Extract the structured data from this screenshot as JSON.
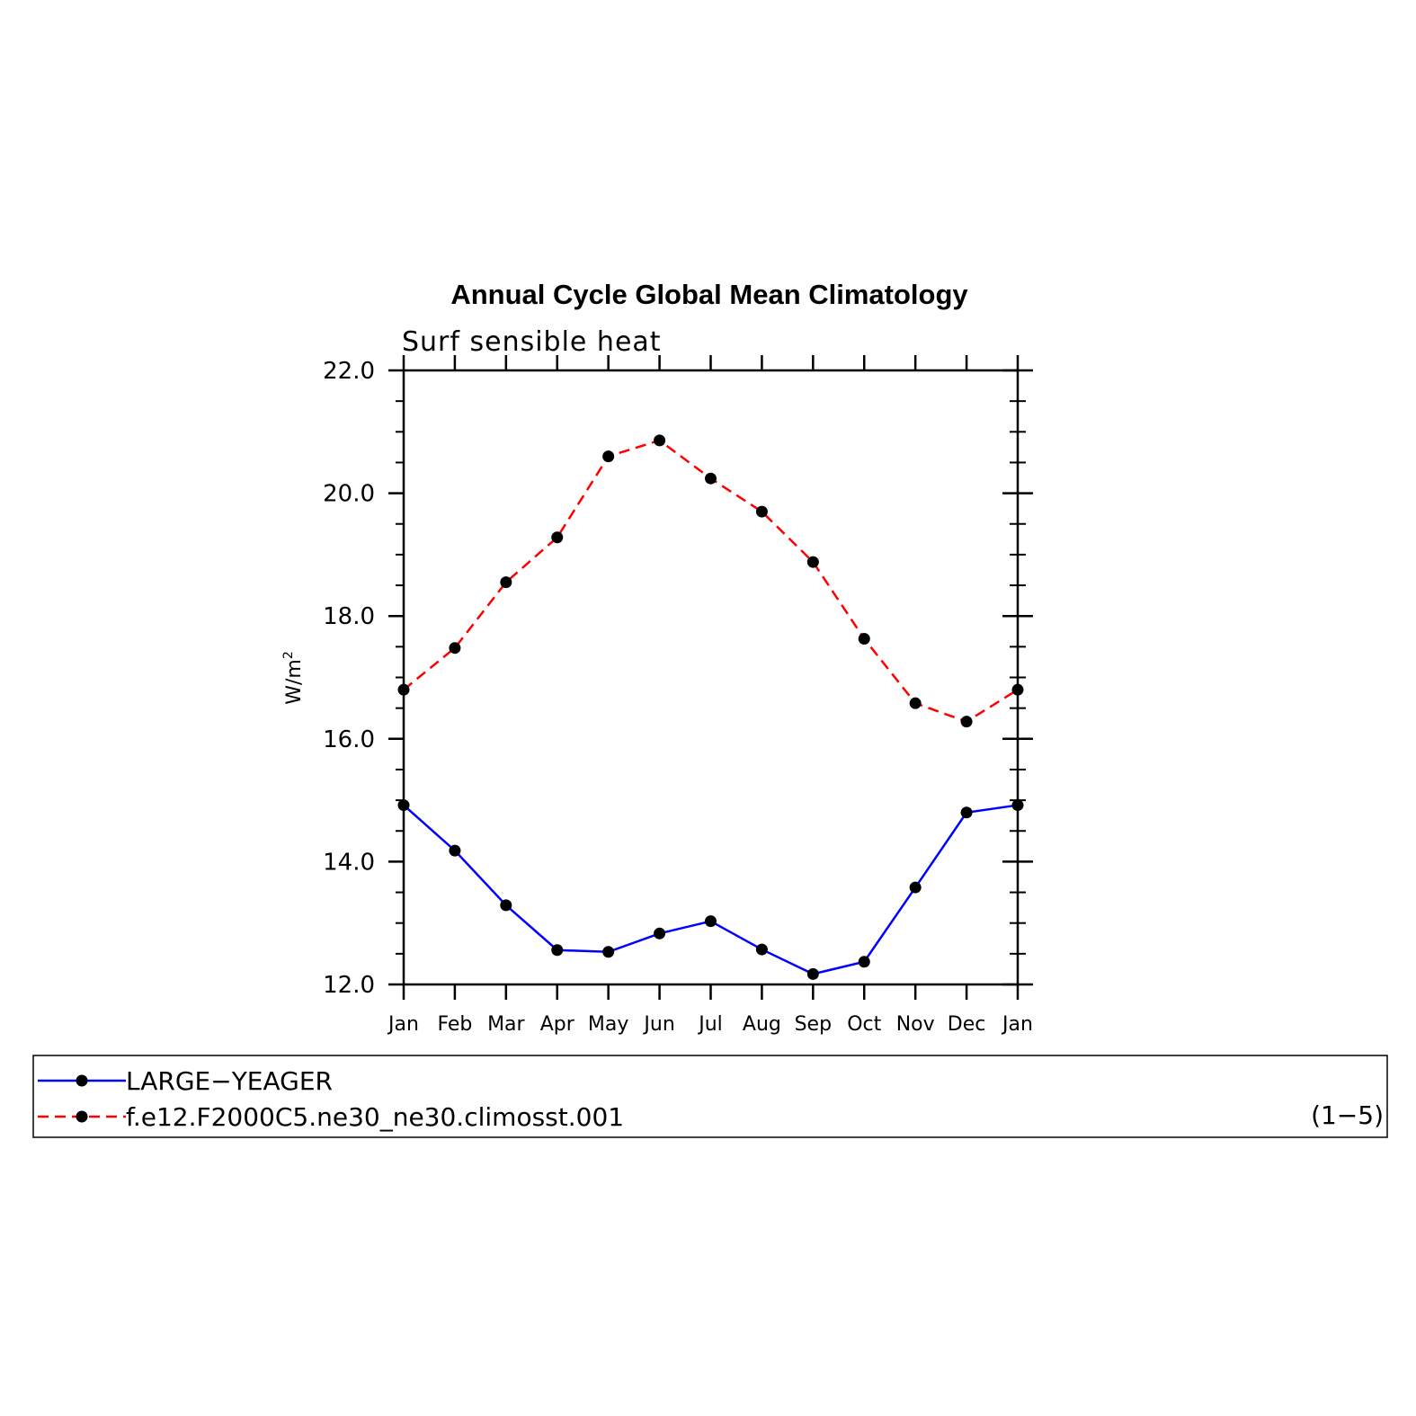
{
  "chart_data": {
    "type": "line",
    "title": "Annual Cycle Global Mean Climatology",
    "subtitle": "Surf sensible heat",
    "ylabel": "W/m",
    "ylabel_superscript": "2",
    "ylim": [
      12.0,
      22.0
    ],
    "yticks": [
      "12.0",
      "14.0",
      "16.0",
      "18.0",
      "20.0",
      "22.0"
    ],
    "categories": [
      "Jan",
      "Feb",
      "Mar",
      "Apr",
      "May",
      "Jun",
      "Jul",
      "Aug",
      "Sep",
      "Oct",
      "Nov",
      "Dec",
      "Jan"
    ],
    "series": [
      {
        "name": "LARGE−YEAGER",
        "color": "#0000ff",
        "dash": "solid",
        "values": [
          14.92,
          14.18,
          13.29,
          12.56,
          12.53,
          12.83,
          13.03,
          12.57,
          12.17,
          12.37,
          13.58,
          14.8,
          14.92
        ]
      },
      {
        "name": "f.e12.F2000C5.ne30_ne30.climosst.001",
        "color": "#ff0000",
        "dash": "dashed",
        "values": [
          16.8,
          17.48,
          18.55,
          19.28,
          20.6,
          20.86,
          20.24,
          19.7,
          18.88,
          17.63,
          16.58,
          16.28,
          16.8
        ]
      }
    ],
    "legend_note": "(1−5)",
    "legend_position": "bottom"
  }
}
